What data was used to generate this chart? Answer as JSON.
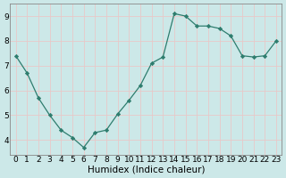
{
  "x": [
    0,
    1,
    2,
    3,
    4,
    5,
    6,
    7,
    8,
    9,
    10,
    11,
    12,
    13,
    14,
    15,
    16,
    17,
    18,
    19,
    20,
    21,
    22,
    23
  ],
  "y": [
    7.4,
    6.7,
    5.7,
    5.0,
    4.4,
    4.1,
    3.7,
    4.3,
    4.4,
    5.05,
    5.6,
    6.2,
    7.1,
    7.35,
    9.1,
    9.0,
    8.6,
    8.6,
    8.5,
    8.2,
    7.4,
    7.35,
    7.4,
    8.0
  ],
  "line_color": "#2e7d6e",
  "marker": "D",
  "marker_size": 2.2,
  "bg_color": "#cce8e8",
  "grid_color": "#e8c8c8",
  "xlabel": "Humidex (Indice chaleur)",
  "xlabel_fontsize": 7.5,
  "tick_fontsize": 6.5,
  "ylim": [
    3.4,
    9.5
  ],
  "yticks": [
    4,
    5,
    6,
    7,
    8,
    9
  ],
  "xlim": [
    -0.5,
    23.5
  ],
  "title": ""
}
